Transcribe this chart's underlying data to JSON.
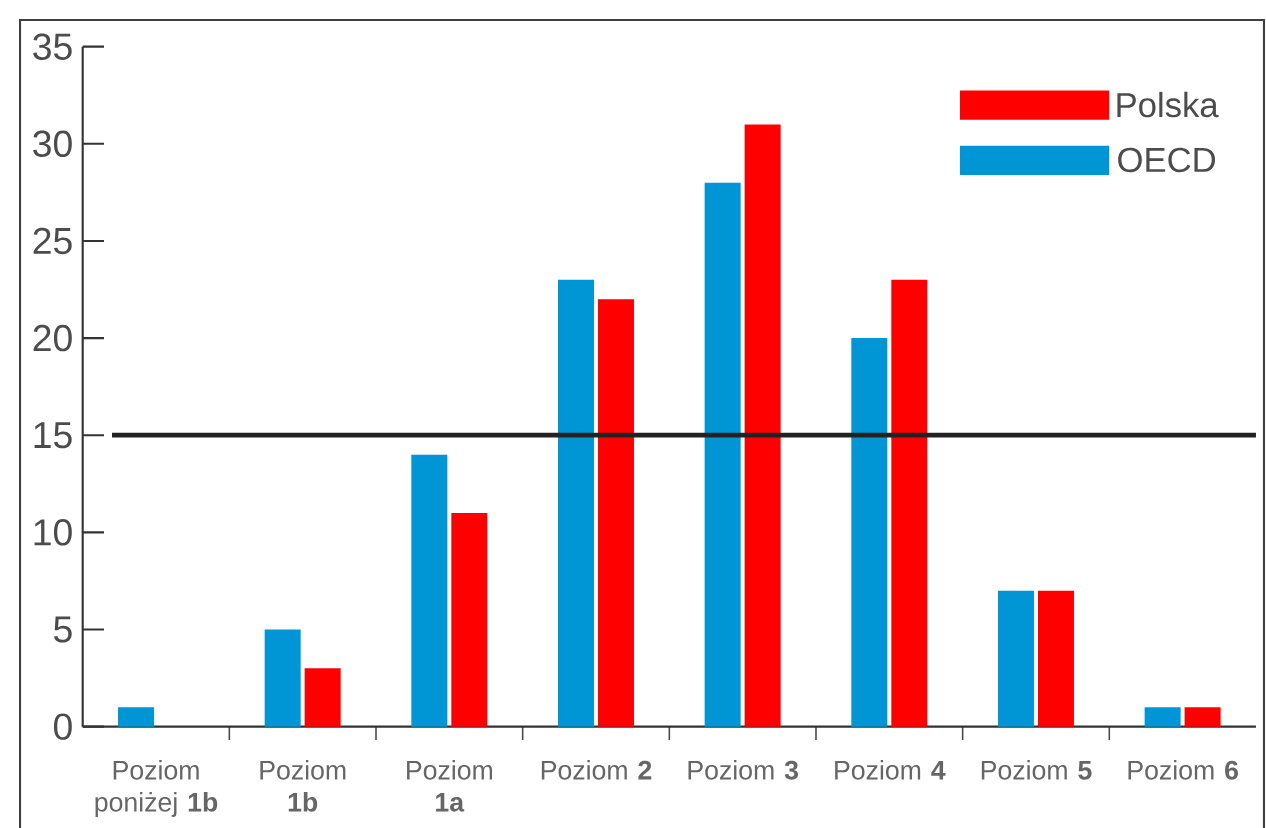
{
  "chart_data": {
    "type": "bar",
    "categories": [
      "Poziom poniżej **1b**",
      "Poziom **1b**",
      "Poziom **1a**",
      "Poziom **2**",
      "Poziom **3**",
      "Poziom **4**",
      "Poziom **5**",
      "Poziom **6**"
    ],
    "series": [
      {
        "name": "OECD",
        "color": "#0096d6",
        "values": [
          1,
          5,
          14,
          23,
          28,
          20,
          7,
          1
        ]
      },
      {
        "name": "Polska",
        "color": "#ff0000",
        "values": [
          0,
          3,
          11,
          22,
          31,
          23,
          7,
          1
        ]
      }
    ],
    "ylim": [
      0,
      35
    ],
    "yticks": [
      0,
      5,
      10,
      15,
      20,
      25,
      30,
      35
    ],
    "ref_lines": [
      {
        "axis": "y",
        "value": 15,
        "color": "#222222"
      }
    ],
    "grid": false,
    "legend": "top right"
  }
}
